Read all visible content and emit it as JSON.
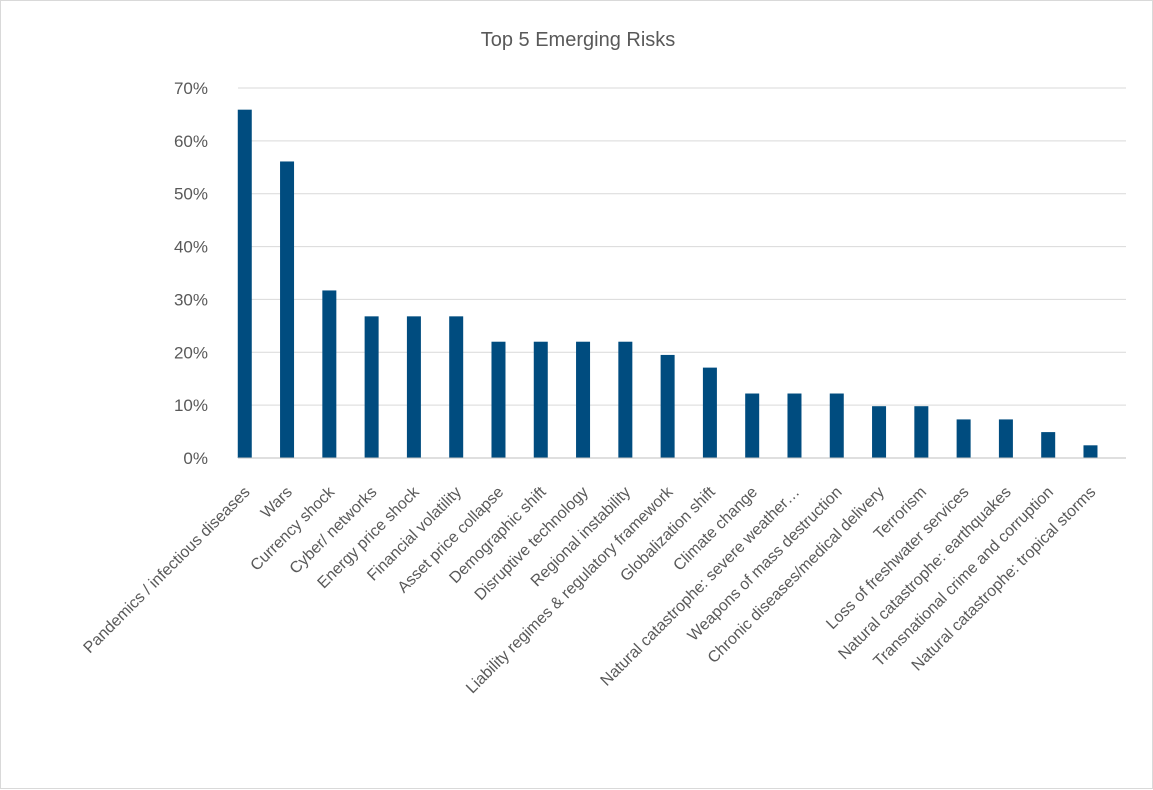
{
  "chart_data": {
    "type": "bar",
    "title": "Top 5 Emerging Risks",
    "xlabel": "",
    "ylabel": "",
    "ylim": [
      0,
      0.7
    ],
    "y_ticks": [
      0,
      0.1,
      0.2,
      0.3,
      0.4,
      0.5,
      0.6,
      0.7
    ],
    "y_tick_labels": [
      "0%",
      "10%",
      "20%",
      "30%",
      "40%",
      "50%",
      "60%",
      "70%"
    ],
    "grid": true,
    "legend": "none",
    "bar_color": "#004c7f",
    "categories": [
      "Pandemics / infectious diseases",
      "Wars",
      "Currency shock",
      "Cyber/ networks",
      "Energy price shock",
      "Financial volatility",
      "Asset price collapse",
      "Demographic shift",
      "Disruptive technology",
      "Regional instability",
      "Liability regimes & regulatory framework",
      "Globalization shift",
      "Climate change",
      "Natural catastrophe: severe weather…",
      "Weapons of mass destruction",
      "Chronic diseases/medical delivery",
      "Terrorism",
      "Loss of freshwater services",
      "Natural catastrophe: earthquakes",
      "Transnational crime and corruption",
      "Natural catastrophe: tropical storms"
    ],
    "values": [
      0.659,
      0.561,
      0.317,
      0.268,
      0.268,
      0.268,
      0.22,
      0.22,
      0.22,
      0.22,
      0.195,
      0.171,
      0.122,
      0.122,
      0.122,
      0.098,
      0.098,
      0.073,
      0.073,
      0.049,
      0.024
    ]
  }
}
